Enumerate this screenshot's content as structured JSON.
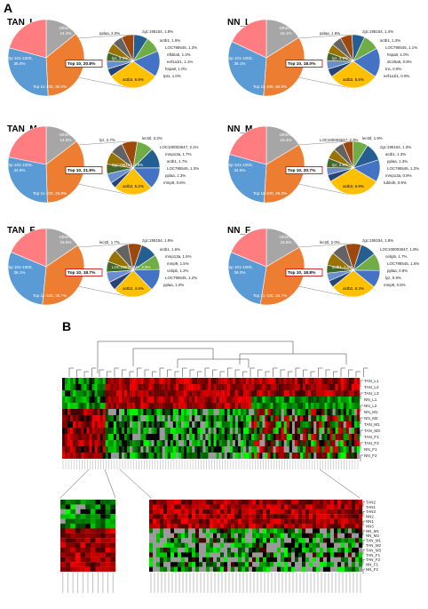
{
  "panel_a_label": "A",
  "panel_b_label": "B",
  "colors": {
    "others": "#a6a6a6",
    "top101": "#ed7d31",
    "top11": "#5b9bd5",
    "top10": "#ff7c80",
    "sub": [
      "#70ad47",
      "#255e91",
      "#9e480e",
      "#636363",
      "#997300",
      "#264478",
      "#43682b",
      "#698ed0",
      "#f1975a",
      "#ffc000",
      "#4472c4"
    ]
  },
  "chart_data": [
    {
      "type": "pie",
      "title": "TAN_L",
      "main": [
        {
          "label": "Others, 14.2%",
          "value": 14.2
        },
        {
          "label": "Top 101-1000, 35.0%",
          "value": 35.0
        },
        {
          "label": "Top 11-100, 30.0%",
          "value": 30.0
        },
        {
          "label": "Top 10, 20.8%",
          "value": 20.8
        }
      ],
      "sub": [
        {
          "label": "actb2, 6.5%",
          "value": 6.5,
          "ci": 9
        },
        {
          "label": "tpt1, 1.0%",
          "value": 1.0,
          "ci": 5
        },
        {
          "label": "hspa8, 1.0%",
          "value": 1.0,
          "ci": 7
        },
        {
          "label": "eef1a1l1, 1.1%",
          "value": 1.1,
          "ci": 6
        },
        {
          "label": "nfkbiab, 1.3%",
          "value": 1.3,
          "ci": 4
        },
        {
          "label": "LOC795545, 1.3%",
          "value": 1.3,
          "ci": 3
        },
        {
          "label": "actb1, 1.6%",
          "value": 1.6,
          "ci": 2
        },
        {
          "label": "zgc:195154, 1.8%",
          "value": 1.8,
          "ci": 1
        },
        {
          "label": "pplaa, 2.0%",
          "value": 2.0,
          "ci": 0
        },
        {
          "label": "lyz, 3.3%",
          "value": 3.3,
          "ci": 10
        }
      ]
    },
    {
      "type": "pie",
      "title": "NN_L",
      "main": [
        {
          "label": "Others, 16.1%",
          "value": 16.1
        },
        {
          "label": "Top 101-1000, 35.1%",
          "value": 35.1
        },
        {
          "label": "Top 11-100, 30.8%",
          "value": 30.8
        },
        {
          "label": "Top 10, 18.0%",
          "value": 18.0
        }
      ],
      "sub": [
        {
          "label": "actb2, 5.5%",
          "value": 5.5,
          "ci": 9
        },
        {
          "label": "eef1a1l1, 0.9%",
          "value": 0.9,
          "ci": 5
        },
        {
          "label": "tnc, 0.9%",
          "value": 0.9,
          "ci": 7
        },
        {
          "label": "slc25a5, 0.9%",
          "value": 0.9,
          "ci": 6
        },
        {
          "label": "hspa8, 1.0%",
          "value": 1.0,
          "ci": 4
        },
        {
          "label": "LOC795545, 1.1%",
          "value": 1.1,
          "ci": 3
        },
        {
          "label": "actb1, 1.3%",
          "value": 1.3,
          "ci": 2
        },
        {
          "label": "zgc:195154, 1.4%",
          "value": 1.4,
          "ci": 1
        },
        {
          "label": "pplaa, 1.8%",
          "value": 1.8,
          "ci": 0
        },
        {
          "label": "lyz, 3.2%",
          "value": 3.2,
          "ci": 10
        }
      ]
    },
    {
      "type": "pie",
      "title": "TAN_M",
      "main": [
        {
          "label": "Others, 14.6%",
          "value": 14.6
        },
        {
          "label": "Top 101-1000, 34.9%",
          "value": 34.9
        },
        {
          "label": "Top 11-100, 28.6%",
          "value": 28.6
        },
        {
          "label": "Top 10, 21.9%",
          "value": 21.9
        }
      ],
      "sub": [
        {
          "label": "actb2, 5.2%",
          "value": 5.2,
          "ci": 9
        },
        {
          "label": "mmp9, 0.8%",
          "value": 0.8,
          "ci": 5
        },
        {
          "label": "pplaa, 1.3%",
          "value": 1.3,
          "ci": 7
        },
        {
          "label": "LOC795545, 1.3%",
          "value": 1.3,
          "ci": 6
        },
        {
          "label": "actb1, 1.7%",
          "value": 1.7,
          "ci": 4
        },
        {
          "label": "mmp13a, 1.7%",
          "value": 1.7,
          "ci": 3
        },
        {
          "label": "LOC100003647, 2.1%",
          "value": 2.1,
          "ci": 2
        },
        {
          "label": "lect2l, 2.2%",
          "value": 2.2,
          "ci": 0
        },
        {
          "label": "lyz, 2.7%",
          "value": 2.7,
          "ci": 1
        },
        {
          "label": "zgc:195154, 2.9%",
          "value": 2.9,
          "ci": 10
        }
      ]
    },
    {
      "type": "pie",
      "title": "NN_M",
      "main": [
        {
          "label": "Others, 16.4%",
          "value": 16.4
        },
        {
          "label": "Top 101-1000, 34.6%",
          "value": 34.6
        },
        {
          "label": "Top 11-100, 28.3%",
          "value": 28.3
        },
        {
          "label": "Top 10, 20.7%",
          "value": 20.7
        }
      ],
      "sub": [
        {
          "label": "actb2, 6.9%",
          "value": 6.9,
          "ci": 9
        },
        {
          "label": "tubb4b, 0.9%",
          "value": 0.9,
          "ci": 5
        },
        {
          "label": "mmp13a, 0.9%",
          "value": 0.9,
          "ci": 7
        },
        {
          "label": "LOC795545, 1.2%",
          "value": 1.2,
          "ci": 6
        },
        {
          "label": "pplaa, 1.3%",
          "value": 1.3,
          "ci": 4
        },
        {
          "label": "actb1, 1.3%",
          "value": 1.3,
          "ci": 3
        },
        {
          "label": "zgc:195154, 1.3%",
          "value": 1.3,
          "ci": 2
        },
        {
          "label": "lect2l, 1.9%",
          "value": 1.9,
          "ci": 0
        },
        {
          "label": "LOC100003647, 2.3%",
          "value": 2.3,
          "ci": 1
        },
        {
          "label": "lyz, 2.8%",
          "value": 2.8,
          "ci": 10
        }
      ]
    },
    {
      "type": "pie",
      "title": "TAN_F",
      "main": [
        {
          "label": "Others, 15.5%",
          "value": 15.5
        },
        {
          "label": "Top 101-1000, 36.1%",
          "value": 36.1
        },
        {
          "label": "Top 11-100, 29.7%",
          "value": 29.7
        },
        {
          "label": "Top 10, 18.7%",
          "value": 18.7
        }
      ],
      "sub": [
        {
          "label": "actb2, 4.6%",
          "value": 4.6,
          "ci": 9
        },
        {
          "label": "pplaa, 1.0%",
          "value": 1.0,
          "ci": 5
        },
        {
          "label": "LOC795545, 1.2%",
          "value": 1.2,
          "ci": 7
        },
        {
          "label": "cebpb, 1.2%",
          "value": 1.2,
          "ci": 6
        },
        {
          "label": "mmp9, 1.5%",
          "value": 1.5,
          "ci": 4
        },
        {
          "label": "mmp13a, 1.6%",
          "value": 1.6,
          "ci": 3
        },
        {
          "label": "actb1, 1.6%",
          "value": 1.6,
          "ci": 2
        },
        {
          "label": "zgc:195154, 1.9%",
          "value": 1.9,
          "ci": 1
        },
        {
          "label": "lect2l, 1.7%",
          "value": 1.7,
          "ci": 0
        },
        {
          "label": "LOC100003647, 2.5%",
          "value": 2.5,
          "ci": 10
        }
      ]
    },
    {
      "type": "pie",
      "title": "NN_F",
      "main": [
        {
          "label": "Others, 16.5%",
          "value": 16.5
        },
        {
          "label": "Top 101-1000, 36.0%",
          "value": 36.0
        },
        {
          "label": "Top 11-100, 28.7%",
          "value": 28.7
        },
        {
          "label": "Top 10, 18.8%",
          "value": 18.8
        }
      ],
      "sub": [
        {
          "label": "actb2, 5.3%",
          "value": 5.3,
          "ci": 9
        },
        {
          "label": "mmp9, 0.8%",
          "value": 0.8,
          "ci": 5
        },
        {
          "label": "lyz, 0.9%",
          "value": 0.9,
          "ci": 7
        },
        {
          "label": "pplaa, 0.9%",
          "value": 0.9,
          "ci": 6
        },
        {
          "label": "LOC795545, 1.5%",
          "value": 1.5,
          "ci": 4
        },
        {
          "label": "cebpb, 1.7%",
          "value": 1.7,
          "ci": 3
        },
        {
          "label": "LOC100003647, 1.8%",
          "value": 1.8,
          "ci": 2
        },
        {
          "label": "zgc:195154, 1.8%",
          "value": 1.8,
          "ci": 1
        },
        {
          "label": "lect2l, 2.0%",
          "value": 2.0,
          "ci": 0
        },
        {
          "label": "actb1, 2.0%",
          "value": 2.0,
          "ci": 10
        }
      ]
    },
    {
      "type": "heatmap",
      "rows": [
        "TAN_L1",
        "TAN_L2",
        "TAN_L3",
        "NN_L1",
        "NN_L2",
        "NN_M1",
        "NN_M2",
        "TAN_M1",
        "TAN_M3",
        "TAN_F1",
        "TAN_F2",
        "NN_F1",
        "NN_F2"
      ],
      "zoom_rows": [
        "TAN2",
        "TAN1",
        "TAN3",
        "NN2",
        "NN1",
        "NN3",
        "NN_M1",
        "NN_M2",
        "TAN_M1",
        "TAN_M2",
        "TAN_M3",
        "TAN_F1",
        "TAN_F2",
        "NN_F1",
        "NN_F2"
      ]
    }
  ]
}
